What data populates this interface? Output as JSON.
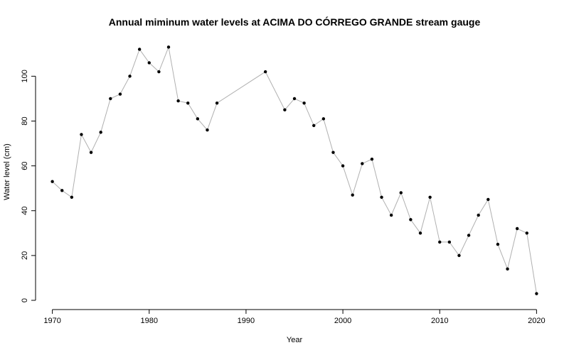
{
  "chart_data": {
    "type": "line",
    "title": "Annual miminum water levels at ACIMA DO CÓRREGO GRANDE stream gauge",
    "xlabel": "Year",
    "ylabel": "Water level (cm)",
    "xlim": [
      1969,
      2021
    ],
    "ylim": [
      0,
      115
    ],
    "x_ticks": [
      1970,
      1980,
      1990,
      2000,
      2010,
      2020
    ],
    "y_ticks": [
      0,
      20,
      40,
      60,
      80,
      100
    ],
    "grid": false,
    "line_color": "#b0b0b0",
    "point_color": "#000000",
    "series": [
      {
        "x": [
          1970,
          1971,
          1972,
          1973,
          1974,
          1975,
          1976,
          1977,
          1978,
          1979,
          1980,
          1981,
          1982,
          1983,
          1984,
          1985,
          1986,
          1987,
          1992,
          1994,
          1995,
          1996,
          1997,
          1998,
          1999,
          2000,
          2001,
          2002,
          2003,
          2004,
          2005,
          2006,
          2007,
          2008,
          2009,
          2010,
          2011,
          2012,
          2013,
          2014,
          2015,
          2016,
          2017,
          2018,
          2019,
          2020
        ],
        "values": [
          53,
          49,
          46,
          74,
          66,
          75,
          90,
          92,
          100,
          112,
          106,
          102,
          113,
          89,
          88,
          81,
          76,
          88,
          102,
          85,
          90,
          88,
          78,
          81,
          66,
          60,
          47,
          61,
          63,
          46,
          38,
          48,
          36,
          30,
          46,
          26,
          26,
          20,
          29,
          38,
          45,
          25,
          14,
          32,
          30,
          3
        ]
      }
    ]
  }
}
